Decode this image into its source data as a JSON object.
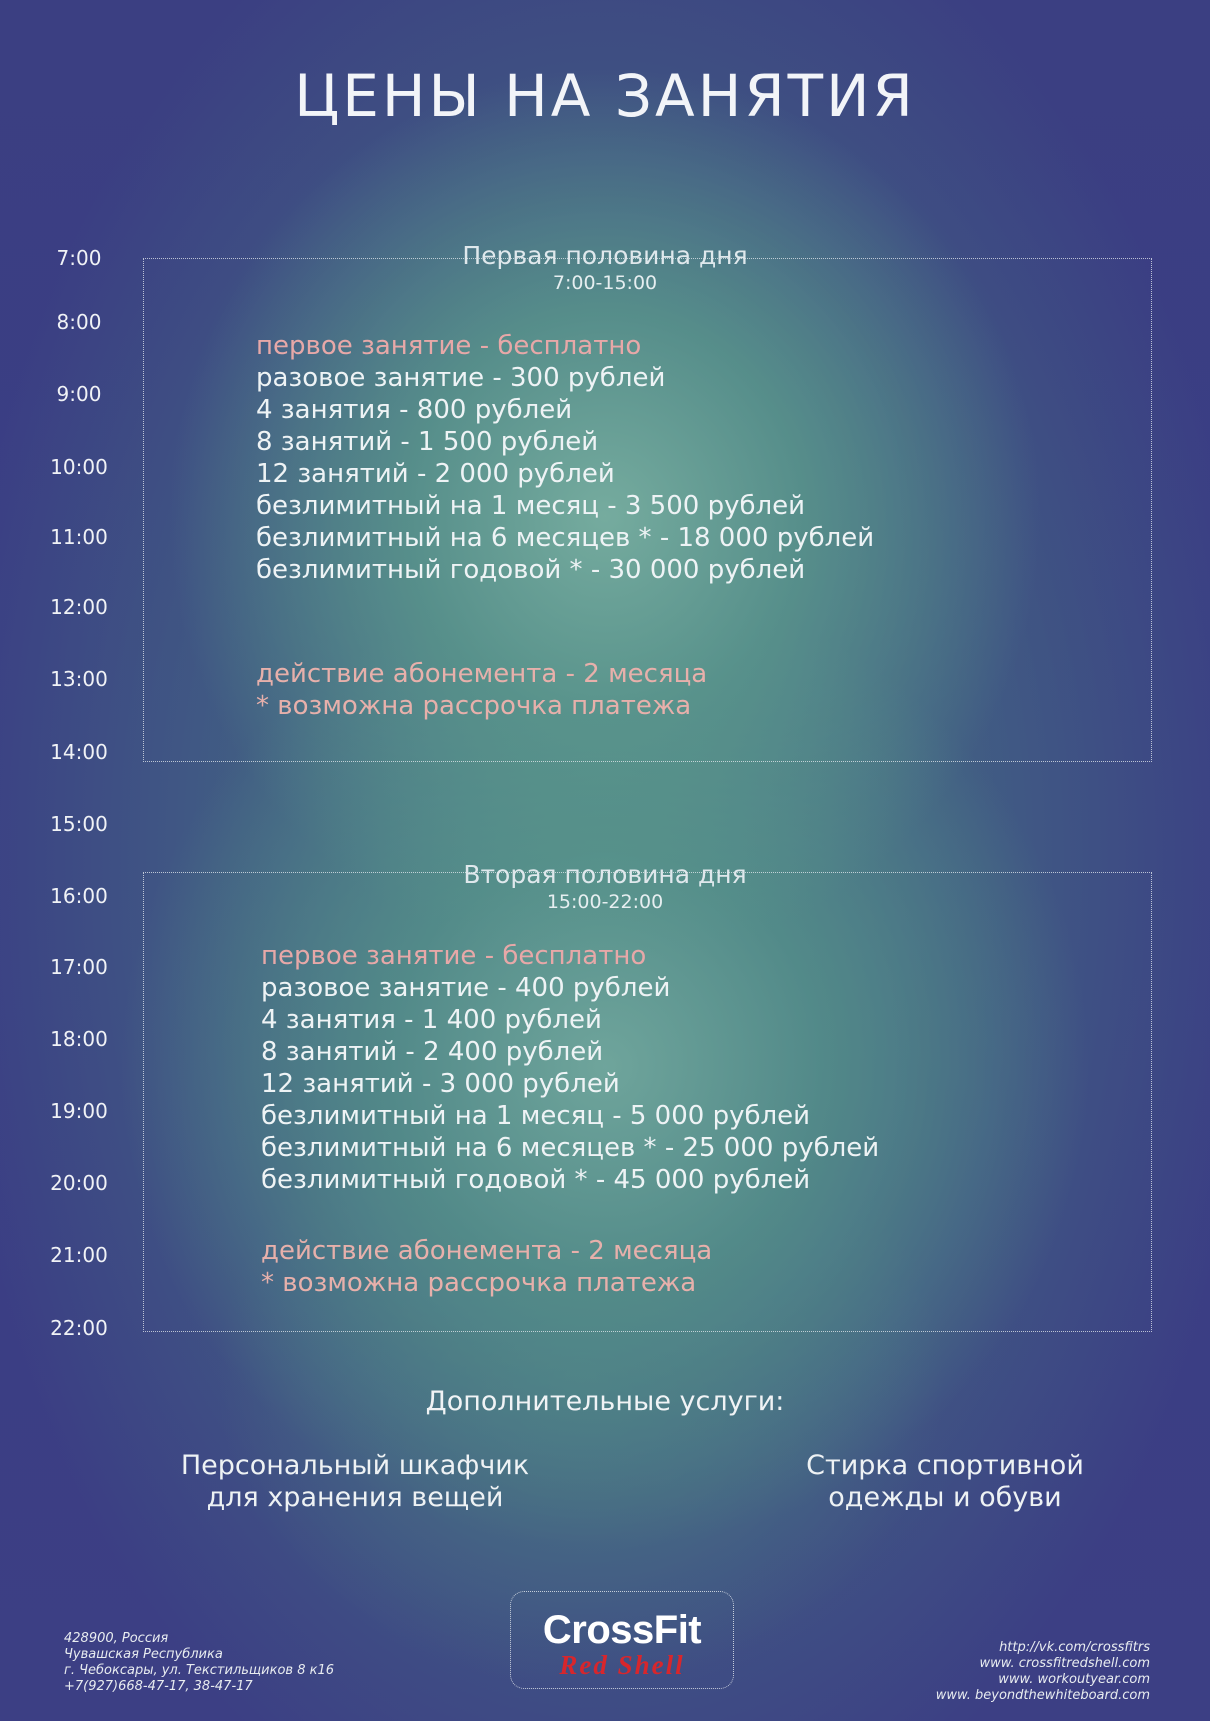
{
  "title": "ЦЕНЫ НА ЗАНЯТИЯ",
  "times": [
    "7:00",
    "8:00",
    "9:00",
    "10:00",
    "11:00",
    "12:00",
    "13:00",
    "14:00",
    "15:00",
    "16:00",
    "17:00",
    "18:00",
    "19:00",
    "20:00",
    "21:00",
    "22:00"
  ],
  "morning": {
    "title": "Первая половина дня",
    "hours": "7:00-15:00",
    "first_free": "первое занятие - бесплатно",
    "lines": [
      "разовое занятие -  300 рублей",
      "4 занятия -   800 рублей",
      "8 занятий - 1 500 рублей",
      "12 занятий -  2 000 рублей",
      "безлимитный на 1 месяц -   3 500 рублей",
      "безлимитный на 6 месяцев * - 18 000 рублей",
      "безлимитный годовой * -   30 000 рублей"
    ],
    "validity": "действие абонемента - 2 месяца",
    "installment": "* возможна рассрочка платежа"
  },
  "evening": {
    "title": "Вторая половина дня",
    "hours": "15:00-22:00",
    "first_free": "первое занятие - бесплатно",
    "lines": [
      "разовое занятие -  400 рублей",
      "4 занятия -   1 400 рублей",
      "8 занятий - 2 400 рублей",
      " 12 занятий -  3 000 рублей",
      "безлимитный на 1 месяц -   5 000 рублей",
      "безлимитный на 6 месяцев * - 25 000 рублей",
      "безлимитный годовой * -   45 000 рублей"
    ],
    "validity": "действие абонемента - 2 месяца",
    "installment": "* возможна рассрочка платежа"
  },
  "extras": {
    "title": "Дополнительные услуги:",
    "locker": [
      "Персональный шкафчик",
      "для хранения вещей"
    ],
    "laundry": [
      "Стирка спортивной",
      "одежды и обуви"
    ]
  },
  "logo": {
    "top": "CrossFit",
    "bottom": "Red Shell",
    "top_color": "#ffffff",
    "bottom_color": "#d8262c"
  },
  "address": [
    "428900, Россия",
    "Чувашская Республика",
    "г. Чебоксары, ул. Текстильщиков 8 к16",
    "+7(927)668-47-17, 38-47-17"
  ],
  "links": [
    "http://vk.com/crossfitrs",
    "www. crossfitredshell.com",
    "www. workoutyear.com",
    "www. beyondthewhiteboard.com"
  ]
}
